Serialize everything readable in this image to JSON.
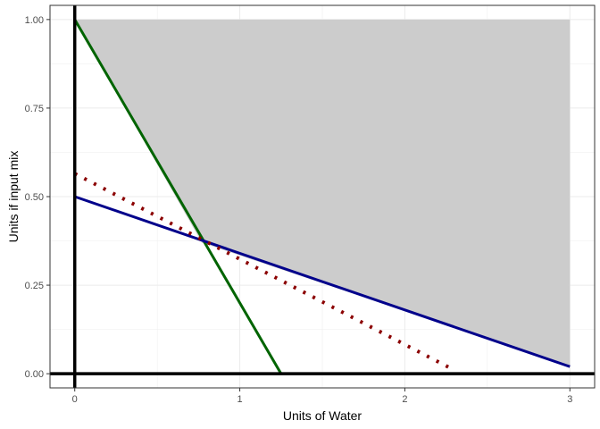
{
  "chart_data": {
    "type": "line",
    "title": "",
    "xlabel": "Units of Water",
    "ylabel": "Units if input mix",
    "xlim": [
      -0.15,
      3.15
    ],
    "ylim": [
      -0.04,
      1.04
    ],
    "grid": true,
    "x_ticks": [
      0,
      1,
      2,
      3
    ],
    "x_tick_labels": [
      "0",
      "1",
      "2",
      "3"
    ],
    "y_ticks": [
      0,
      0.25,
      0.5,
      0.75,
      1
    ],
    "y_tick_labels": [
      "0.00",
      "0.25",
      "0.50",
      "0.75",
      "1.00"
    ],
    "feasible_region": {
      "color": "#cccccc",
      "polygon": [
        [
          0,
          1
        ],
        [
          3,
          1
        ],
        [
          3,
          0.02
        ],
        [
          0.77,
          0.37
        ]
      ]
    },
    "series": [
      {
        "color": "#006400",
        "style": "solid",
        "points": [
          [
            0,
            1
          ],
          [
            1.25,
            0
          ]
        ]
      },
      {
        "color": "#00008b",
        "style": "solid",
        "points": [
          [
            0,
            0.5
          ],
          [
            3,
            0.02
          ]
        ]
      },
      {
        "color": "#8b0000",
        "style": "dotted",
        "points": [
          [
            0,
            0.565
          ],
          [
            2.3,
            0.01
          ]
        ]
      }
    ],
    "reference_lines": [
      {
        "orientation": "vertical",
        "value": 0,
        "color": "#000000"
      },
      {
        "orientation": "horizontal",
        "value": 0,
        "color": "#000000"
      }
    ]
  }
}
